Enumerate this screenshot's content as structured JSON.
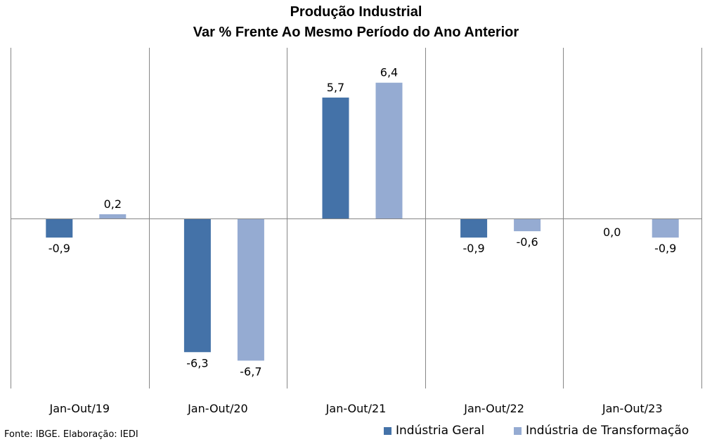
{
  "title_line1": "Produção Industrial",
  "title_line2": "Var % Frente Ao Mesmo Período do Ano Anterior",
  "source": "Fonte: IBGE. Elaboração: IEDI",
  "colors": {
    "geral": "#4472a8",
    "transformacao": "#95abd2",
    "axis": "#868686"
  },
  "chart_data": {
    "type": "bar",
    "title": "Produção Industrial — Var % Frente Ao Mesmo Período do Ano Anterior",
    "categories": [
      "Jan-Out/19",
      "Jan-Out/20",
      "Jan-Out/21",
      "Jan-Out/22",
      "Jan-Out/23"
    ],
    "series": [
      {
        "name": "Indústria Geral",
        "values": [
          -0.9,
          -6.3,
          5.7,
          -0.9,
          0.0
        ],
        "labels": [
          "-0,9",
          "-6,3",
          "5,7",
          "-0,9",
          "0,0"
        ]
      },
      {
        "name": "Indústria de Transformação",
        "values": [
          0.2,
          -6.7,
          6.4,
          -0.6,
          -0.9
        ],
        "labels": [
          "0,2",
          "-6,7",
          "6,4",
          "-0,6",
          "-0,9"
        ]
      }
    ],
    "ylim": [
      -8,
      8
    ],
    "grid": false,
    "legend_position": "bottom-right"
  }
}
